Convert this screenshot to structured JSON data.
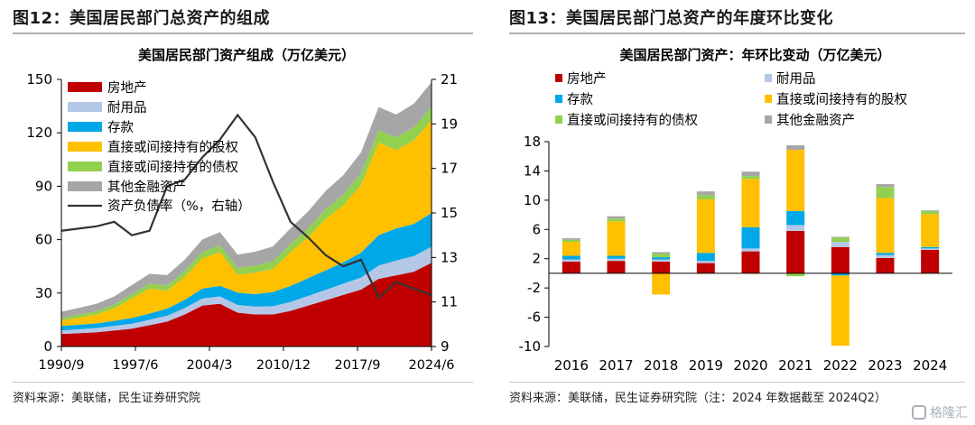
{
  "left": {
    "figure_title": "图12：美国居民部门总资产的组成",
    "source": "资料来源：美联储，民生证券研究院",
    "chart_title": "美国居民部门资产组成（万亿美元）"
  },
  "right": {
    "figure_title": "图13：美国居民部门总资产的年度环比变化",
    "source": "资料来源：美联储，民生证券研究院（注：2024 年数据截至 2024Q2）",
    "chart_title": "美国居民部门资产：年环比变动（万亿美元）"
  },
  "watermark": "格隆汇",
  "colors": {
    "real_estate": "#c00000",
    "durables": "#b4c7e7",
    "deposits": "#00a8e8",
    "equity": "#ffc000",
    "bonds": "#92d050",
    "other": "#a6a6a6",
    "leverage": "#333333"
  },
  "chart_data": [
    {
      "type": "area",
      "title": "美国居民部门资产组成（万亿美元）",
      "x": [
        "1990/9",
        "1992/9",
        "1994/9",
        "1996/9",
        "1998/9",
        "2000/9",
        "2002/9",
        "2004/9",
        "2006/9",
        "2007/9",
        "2008/12",
        "2009/9",
        "2011/9",
        "2013/9",
        "2015/9",
        "2017/9",
        "2019/9",
        "2020/9",
        "2021/12",
        "2022/9",
        "2023/9",
        "2024/6"
      ],
      "x_tick_labels": [
        "1990/9",
        "1997/6",
        "2004/3",
        "2010/12",
        "2017/9",
        "2024/6"
      ],
      "ylim_left": [
        0,
        150
      ],
      "yticks_left": [
        0,
        30,
        60,
        90,
        120,
        150
      ],
      "ylim_right": [
        9,
        21
      ],
      "yticks_right": [
        9,
        11,
        13,
        15,
        17,
        19,
        21
      ],
      "stacked": true,
      "series": [
        {
          "name": "房地产",
          "color_key": "real_estate",
          "values": [
            7,
            7.5,
            8,
            9,
            10,
            12,
            14,
            18,
            23,
            24,
            19,
            18,
            18,
            20,
            23,
            26,
            29,
            32,
            38,
            40,
            42,
            47
          ]
        },
        {
          "name": "耐用品",
          "color_key": "durables",
          "values": [
            2,
            2.2,
            2.4,
            2.6,
            2.8,
            3,
            3.3,
            3.6,
            4,
            4.1,
            4.3,
            4.4,
            4.6,
            5,
            5.4,
            5.8,
            6.3,
            6.7,
            7.5,
            8.3,
            8.8,
            9
          ]
        },
        {
          "name": "存款",
          "color_key": "deposits",
          "values": [
            2.5,
            2.5,
            2.6,
            2.8,
            3.2,
            3.5,
            4,
            4.6,
            5.5,
            6,
            7,
            7,
            8,
            9,
            10,
            11,
            12,
            14,
            17,
            18,
            18,
            19
          ]
        },
        {
          "name": "直接或间接持有的股权",
          "color_key": "equity",
          "values": [
            3,
            4,
            5,
            7,
            11,
            14,
            10,
            13,
            17,
            19,
            10,
            12,
            13,
            19,
            23,
            29,
            32,
            38,
            52,
            44,
            47,
            52
          ]
        },
        {
          "name": "直接或间接持有的债权",
          "color_key": "bonds",
          "values": [
            1.5,
            1.7,
            1.9,
            2.2,
            2.5,
            2.8,
            3,
            3.3,
            3.6,
            3.8,
            3.8,
            4,
            4.3,
            4.6,
            5,
            5.4,
            6,
            6.5,
            7,
            7,
            7.3,
            7.6
          ]
        },
        {
          "name": "其他金融资产",
          "color_key": "other",
          "values": [
            3.5,
            3.8,
            4.1,
            4.5,
            5,
            5.5,
            5.8,
            6.3,
            7,
            7.3,
            7.5,
            7.8,
            8.3,
            8.8,
            9.5,
            10.2,
            11,
            11.8,
            13,
            13,
            13.3,
            13.8
          ]
        }
      ],
      "leverage_series": {
        "name": "资产负债率（%，右轴）",
        "axis": "right",
        "values": [
          14.2,
          14.3,
          14.4,
          14.6,
          14.0,
          14.2,
          16.2,
          16.5,
          17.5,
          18.3,
          19.4,
          18.4,
          16.4,
          14.6,
          13.9,
          13.1,
          12.6,
          12.9,
          11.2,
          11.9,
          11.6,
          11.3
        ]
      }
    },
    {
      "type": "bar",
      "title": "美国居民部门资产：年环比变动（万亿美元）",
      "categories": [
        "2016",
        "2017",
        "2018",
        "2019",
        "2020",
        "2021",
        "2022",
        "2023",
        "2024"
      ],
      "ylim": [
        -10,
        18
      ],
      "yticks": [
        -10,
        -6,
        -2,
        2,
        6,
        10,
        14,
        18
      ],
      "stacked": true,
      "series": [
        {
          "name": "房地产",
          "color_key": "real_estate",
          "values": [
            1.6,
            1.7,
            1.6,
            1.4,
            3,
            5.8,
            3.6,
            2.1,
            3.2
          ]
        },
        {
          "name": "耐用品",
          "color_key": "durables",
          "values": [
            0.3,
            0.3,
            0.3,
            0.3,
            0.4,
            0.8,
            0.7,
            0.4,
            0.2
          ]
        },
        {
          "name": "存款",
          "color_key": "deposits",
          "values": [
            0.5,
            0.4,
            0.3,
            1.1,
            2.9,
            1.9,
            -0.3,
            0.3,
            0.2
          ]
        },
        {
          "name": "直接或间接持有的股权",
          "color_key": "equity",
          "values": [
            1.9,
            4.7,
            -2.9,
            7.3,
            6.6,
            8.4,
            -9.6,
            7.5,
            4.5
          ]
        },
        {
          "name": "直接或间接持有的债权",
          "color_key": "bonds",
          "values": [
            0.3,
            0.4,
            0.5,
            0.6,
            0.4,
            -0.4,
            0.6,
            1.5,
            0.4
          ]
        },
        {
          "name": "其他金融资产",
          "color_key": "other",
          "values": [
            0.2,
            0.3,
            0.2,
            0.5,
            0.6,
            0.6,
            0.1,
            0.4,
            0.1
          ]
        }
      ]
    }
  ]
}
